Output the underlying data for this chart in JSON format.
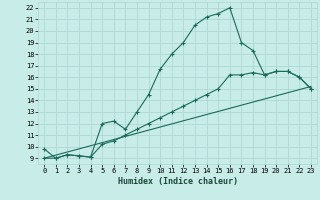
{
  "xlabel": "Humidex (Indice chaleur)",
  "bg_color": "#c8ece8",
  "grid_color": "#aed8d4",
  "line_color": "#1a6b5a",
  "xlim": [
    -0.5,
    23.5
  ],
  "ylim": [
    8.5,
    22.5
  ],
  "xticks": [
    0,
    1,
    2,
    3,
    4,
    5,
    6,
    7,
    8,
    9,
    10,
    11,
    12,
    13,
    14,
    15,
    16,
    17,
    18,
    19,
    20,
    21,
    22,
    23
  ],
  "yticks": [
    9,
    10,
    11,
    12,
    13,
    14,
    15,
    16,
    17,
    18,
    19,
    20,
    21,
    22
  ],
  "line1_x": [
    0,
    1,
    2,
    3,
    4,
    5,
    6,
    7,
    8,
    9,
    10,
    11,
    12,
    13,
    14,
    15,
    16,
    17,
    18,
    19,
    20,
    21,
    22,
    23
  ],
  "line1_y": [
    9.8,
    9.0,
    9.3,
    9.2,
    9.1,
    12.0,
    12.2,
    11.5,
    13.0,
    14.5,
    16.7,
    18.0,
    19.0,
    20.5,
    21.2,
    21.5,
    22.0,
    19.0,
    18.3,
    16.2,
    16.5,
    16.5,
    16.0,
    15.0
  ],
  "line2_x": [
    0,
    1,
    2,
    3,
    4,
    5,
    6,
    7,
    8,
    9,
    10,
    11,
    12,
    13,
    14,
    15,
    16,
    17,
    18,
    19,
    20,
    21,
    22,
    23
  ],
  "line2_y": [
    9.0,
    9.0,
    9.3,
    9.2,
    9.1,
    10.2,
    10.5,
    11.0,
    11.5,
    12.0,
    12.5,
    13.0,
    13.5,
    14.0,
    14.5,
    15.0,
    16.2,
    16.2,
    16.4,
    16.2,
    16.5,
    16.5,
    16.0,
    15.0
  ],
  "line3_x": [
    0,
    23
  ],
  "line3_y": [
    9.0,
    15.2
  ]
}
